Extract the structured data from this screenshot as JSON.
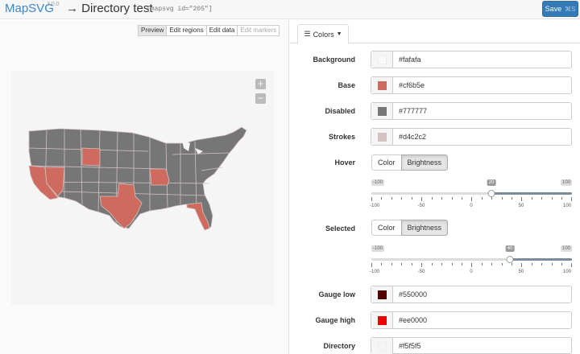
{
  "header": {
    "brand": "MapSVG",
    "version": "3.0.0",
    "title": "→ Directory test",
    "shortcode": "[mapsvg id=\"205\"]",
    "save_label": "Save",
    "save_shortcut": "⌘S"
  },
  "modes": [
    "Preview",
    "Edit regions",
    "Edit data",
    "Edit markers"
  ],
  "map": {
    "zoom_in": "+",
    "zoom_out": "−"
  },
  "panel": {
    "tab_label": "Colors",
    "rows": {
      "background": {
        "label": "Background",
        "value": "#fafafa"
      },
      "base": {
        "label": "Base",
        "value": "#cf6b5e"
      },
      "disabled": {
        "label": "Disabled",
        "value": "#777777"
      },
      "strokes": {
        "label": "Strokes",
        "value": "#d4c2c2"
      },
      "gauge_low": {
        "label": "Gauge low",
        "value": "#550000"
      },
      "gauge_high": {
        "label": "Gauge high",
        "value": "#ee0000"
      },
      "directory": {
        "label": "Directory",
        "value": "#f5f5f5"
      }
    },
    "hover": {
      "label": "Hover",
      "options": [
        "Color",
        "Brightness"
      ],
      "selected": "Brightness",
      "slider": {
        "min_label": "-100",
        "max_label": "100",
        "value": 20,
        "value_label": "20",
        "scale": [
          "-100",
          "-50",
          "0",
          "50",
          "100"
        ]
      }
    },
    "selected_state": {
      "label": "Selected",
      "options": [
        "Color",
        "Brightness"
      ],
      "selected": "Brightness",
      "slider": {
        "min_label": "-100",
        "max_label": "100",
        "value": 40,
        "value_label": "40",
        "scale": [
          "-100",
          "-50",
          "0",
          "50",
          "100"
        ]
      }
    }
  },
  "colors": {
    "accent": "#3a87c8",
    "save_button": "#337ab7",
    "map_region_base": "#767676",
    "map_region_highlight": "#cf6b5e"
  }
}
